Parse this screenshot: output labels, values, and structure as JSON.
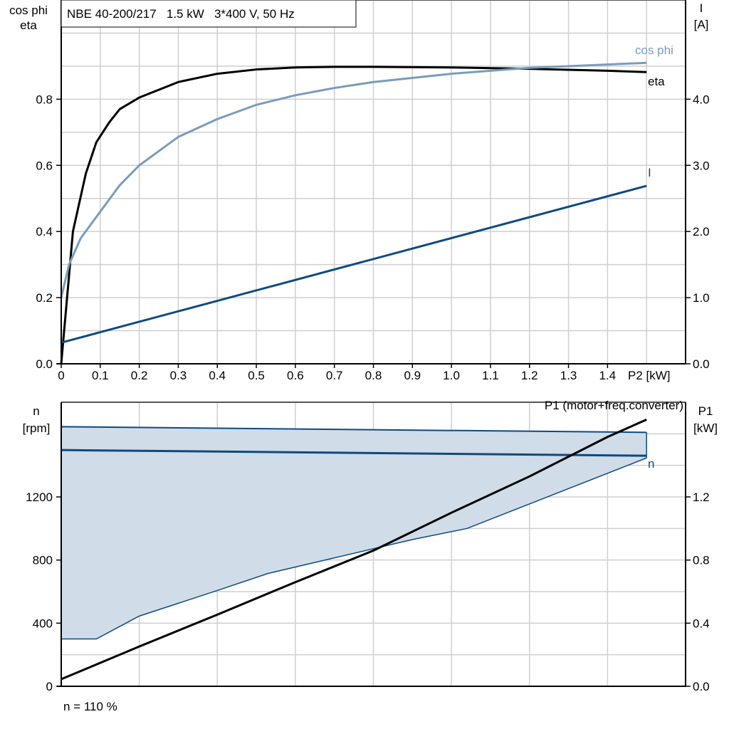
{
  "chart_data": [
    {
      "type": "line",
      "title": "NBE 40-200/217   1.5 kW   3*400 V, 50 Hz",
      "xlabel": "P2 [kW]",
      "ylabel_left": [
        "cos phi",
        "eta"
      ],
      "ylabel_right": [
        "I",
        "[A]"
      ],
      "xlim": [
        0,
        1.6
      ],
      "ylim_left": [
        0,
        1.1
      ],
      "ylim_right": [
        0,
        5.5
      ],
      "x_ticks": [
        "0",
        "0.1",
        "0.2",
        "0.3",
        "0.4",
        "0.5",
        "0.6",
        "0.7",
        "0.8",
        "0.9",
        "1.0",
        "1.1",
        "1.2",
        "1.3",
        "1.4"
      ],
      "y_ticks_left": [
        "0.0",
        "0.2",
        "0.4",
        "0.6",
        "0.8"
      ],
      "y_ticks_right": [
        "0.0",
        "1.0",
        "2.0",
        "3.0",
        "4.0"
      ],
      "grid": true,
      "series": [
        {
          "name": "eta",
          "axis": "left",
          "color": "#000000",
          "x": [
            0,
            0.03,
            0.063,
            0.09,
            0.123,
            0.15,
            0.2,
            0.3,
            0.4,
            0.5,
            0.6,
            0.7,
            0.8,
            1.0,
            1.2,
            1.4,
            1.5
          ],
          "y": [
            0,
            0.4,
            0.575,
            0.67,
            0.73,
            0.77,
            0.805,
            0.852,
            0.877,
            0.89,
            0.896,
            0.898,
            0.898,
            0.896,
            0.892,
            0.886,
            0.882
          ]
        },
        {
          "name": "cos phi",
          "axis": "left",
          "color": "#7a9cbc",
          "x": [
            0,
            0.02,
            0.05,
            0.1,
            0.15,
            0.2,
            0.3,
            0.4,
            0.5,
            0.6,
            0.7,
            0.8,
            1.0,
            1.2,
            1.4,
            1.5
          ],
          "y": [
            0.2,
            0.3,
            0.38,
            0.46,
            0.54,
            0.6,
            0.686,
            0.74,
            0.783,
            0.812,
            0.834,
            0.852,
            0.877,
            0.895,
            0.905,
            0.91
          ]
        },
        {
          "name": "I",
          "axis": "right",
          "color": "#0e4a80",
          "x": [
            0,
            1.5
          ],
          "y": [
            0.32,
            2.69
          ]
        }
      ]
    },
    {
      "type": "area",
      "footnote": "n = 110 %",
      "ylabel_left": [
        "n",
        "[rpm]"
      ],
      "ylabel_right": [
        "P1",
        "[kW]"
      ],
      "xlim": [
        0,
        1.6
      ],
      "ylim_left": [
        0,
        1800
      ],
      "ylim_right": [
        0,
        1.8
      ],
      "y_ticks_left": [
        "0",
        "400",
        "800",
        "1200"
      ],
      "y_ticks_right": [
        "0.0",
        "0.4",
        "0.8",
        "1.2"
      ],
      "grid": true,
      "fill_color": "#d0dce8",
      "range_max": {
        "x": [
          0,
          1.5
        ],
        "y": [
          1645,
          1609
        ]
      },
      "range_min": {
        "x": [
          0,
          0.09,
          0.2,
          0.4,
          0.53,
          0.9,
          1.04,
          1.5
        ],
        "y": [
          300,
          300,
          445,
          607,
          715,
          930,
          1000,
          1447
        ]
      },
      "series": [
        {
          "name": "n",
          "axis": "left",
          "color": "#0e4a80",
          "x": [
            0,
            1.5
          ],
          "y": [
            1497,
            1461
          ]
        },
        {
          "name": "P1 (motor+freq.converter)",
          "axis": "right",
          "color": "#000000",
          "x": [
            0,
            0.2,
            0.4,
            0.6,
            0.8,
            1.0,
            1.2,
            1.4,
            1.5
          ],
          "y": [
            0.045,
            0.252,
            0.454,
            0.66,
            0.86,
            1.1,
            1.33,
            1.58,
            1.69
          ]
        }
      ]
    }
  ]
}
